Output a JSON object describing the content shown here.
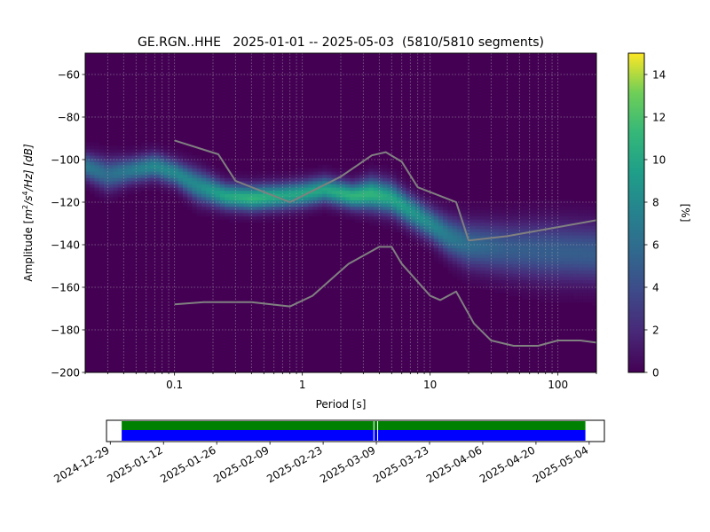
{
  "chart_data": [
    {
      "type": "heatmap",
      "title": "GE.RGN..HHE   2025-01-01 -- 2025-05-03  (5810/5810 segments)",
      "xlabel": "Period [s]",
      "ylabel": "Amplitude [m²/s⁴/Hz] [dB]",
      "ylabel_parts": {
        "prefix": "Amplitude [",
        "base1": "m",
        "sup1": "2",
        "mid": "/s",
        "sup2": "4",
        "suffix": "/Hz] [dB]"
      },
      "xscale": "log",
      "xlim": [
        0.02,
        200
      ],
      "ylim": [
        -200,
        -50
      ],
      "xticks": [
        {
          "value": 0.1,
          "label": "0.1"
        },
        {
          "value": 1,
          "label": "1"
        },
        {
          "value": 10,
          "label": "10"
        },
        {
          "value": 100,
          "label": "100"
        }
      ],
      "yticks": [
        {
          "value": -200,
          "label": "−200"
        },
        {
          "value": -180,
          "label": "−180"
        },
        {
          "value": -160,
          "label": "−160"
        },
        {
          "value": -140,
          "label": "−140"
        },
        {
          "value": -120,
          "label": "−120"
        },
        {
          "value": -100,
          "label": "−100"
        },
        {
          "value": -80,
          "label": "−80"
        },
        {
          "value": -60,
          "label": "−60"
        }
      ],
      "grid": true,
      "colormap": "viridis",
      "colorbar": {
        "label": "[%]",
        "range": [
          0,
          15
        ],
        "ticks": [
          {
            "value": 0,
            "label": "0"
          },
          {
            "value": 2,
            "label": "2"
          },
          {
            "value": 4,
            "label": "4"
          },
          {
            "value": 6,
            "label": "6"
          },
          {
            "value": 8,
            "label": "8"
          },
          {
            "value": 10,
            "label": "10"
          },
          {
            "value": 12,
            "label": "12"
          },
          {
            "value": 14,
            "label": "14"
          }
        ]
      },
      "mode_curve": {
        "period": [
          0.02,
          0.03,
          0.045,
          0.07,
          0.1,
          0.15,
          0.25,
          0.4,
          0.7,
          1.0,
          1.5,
          2.5,
          3.5,
          5.0,
          7.0,
          10,
          14,
          20,
          40,
          80,
          200
        ],
        "amplitude": [
          -103,
          -107,
          -105,
          -103,
          -106,
          -112,
          -117,
          -118,
          -117,
          -116,
          -114,
          -117,
          -116,
          -118,
          -124,
          -130,
          -136,
          -140,
          -142,
          -143,
          -144
        ],
        "spread_db": [
          4,
          5,
          4,
          4,
          4,
          5,
          4,
          4,
          4,
          4,
          4,
          4,
          5,
          5,
          5,
          5,
          6,
          7,
          8,
          9,
          9
        ],
        "peak_percent": [
          7,
          6,
          7,
          8,
          8,
          8,
          10,
          11,
          10,
          10,
          10,
          11,
          11,
          10,
          9,
          8,
          7,
          6,
          5,
          5,
          5
        ]
      },
      "series": [
        {
          "x": [
            0.1,
            0.22,
            0.3,
            0.8,
            2.0,
            3.5,
            4.5,
            6.0,
            8.0,
            16,
            20,
            40,
            200
          ],
          "y": [
            -91,
            -97.5,
            -110,
            -120,
            -108,
            -98,
            -96.5,
            -101,
            -113,
            -120,
            -138,
            -136,
            -128.5
          ]
        },
        {
          "x": [
            0.1,
            0.17,
            0.4,
            0.8,
            1.2,
            2.3,
            4.0,
            5.0,
            6.0,
            10,
            12,
            16,
            22,
            30,
            45,
            70,
            100,
            150,
            200
          ],
          "y": [
            -168,
            -167,
            -167,
            -169,
            -164,
            -149,
            -141,
            -141,
            -149,
            -164,
            -166,
            -162,
            -177,
            -185,
            -187.5,
            -187.5,
            -185,
            -185,
            -186
          ]
        }
      ]
    },
    {
      "type": "bar",
      "x_ticks": [
        "2024-12-29",
        "2025-01-12",
        "2025-01-26",
        "2025-02-09",
        "2025-02-23",
        "2025-03-09",
        "2025-03-23",
        "2025-04-06",
        "2025-04-20",
        "2025-05-04"
      ],
      "xlim": [
        "2024-12-28",
        "2025-05-08"
      ],
      "colors": {
        "data_available": "#008000",
        "psd_used": "#0000ff"
      },
      "data_available": [
        [
          "2025-01-01",
          "2025-05-03"
        ]
      ],
      "psd_used": [
        [
          "2025-01-01",
          "2025-05-03"
        ]
      ],
      "gaps": [
        "2025-03-08",
        "2025-03-09"
      ]
    }
  ]
}
